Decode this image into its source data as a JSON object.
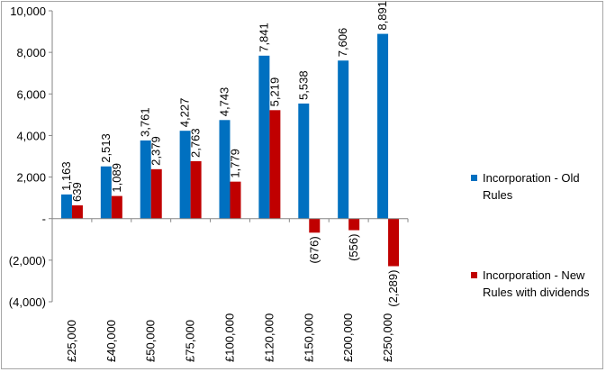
{
  "chart_data": {
    "type": "bar",
    "categories": [
      "£25,000",
      "£40,000",
      "£50,000",
      "£75,000",
      "£100,000",
      "£120,000",
      "£150,000",
      "£200,000",
      "£250,000"
    ],
    "series": [
      {
        "name": "Incorporation - Old Rules",
        "color": "#0070c0",
        "values": [
          1163,
          2513,
          3761,
          4227,
          4743,
          7841,
          5538,
          7606,
          8891
        ],
        "labels": [
          "1,163",
          "2,513",
          "3,761",
          "4,227",
          "4,743",
          "7,841",
          "5,538",
          "7,606",
          "8,891"
        ]
      },
      {
        "name": "Incorporation - New Rules with dividends",
        "color": "#c00000",
        "values": [
          639,
          1089,
          2379,
          2763,
          1779,
          5219,
          -676,
          -556,
          -2289
        ],
        "labels": [
          "639",
          "1,089",
          "2,379",
          "2,763",
          "1,779",
          "5,219",
          "(676)",
          "(556)",
          "(2,289)"
        ]
      }
    ],
    "y_ticks": [
      {
        "value": 10000,
        "label": "10,000"
      },
      {
        "value": 8000,
        "label": "8,000"
      },
      {
        "value": 6000,
        "label": "6,000"
      },
      {
        "value": 4000,
        "label": "4,000"
      },
      {
        "value": 2000,
        "label": "2,000"
      },
      {
        "value": 0,
        "label": "-"
      },
      {
        "value": -2000,
        "label": "(2,000)"
      },
      {
        "value": -4000,
        "label": "(4,000)"
      }
    ],
    "ylim": [
      -4000,
      10000
    ],
    "grid": false,
    "legend_position": "right",
    "title": "",
    "xlabel": "",
    "ylabel": ""
  },
  "legend": {
    "item1": {
      "line1": "Incorporation - Old",
      "line2": "Rules"
    },
    "item2": {
      "line1": "Incorporation - New",
      "line2": "Rules with dividends"
    }
  }
}
